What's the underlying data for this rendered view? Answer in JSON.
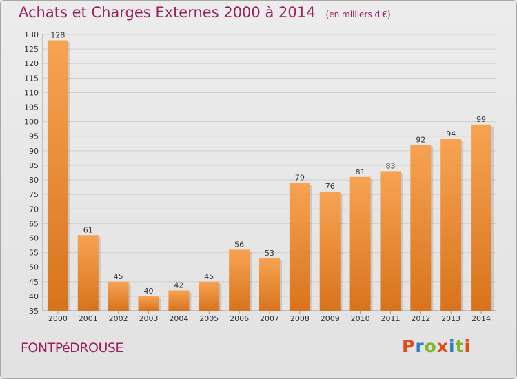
{
  "header": {
    "title": "Achats et Charges Externes 2000 à 2014",
    "subtitle": "(en milliers d'€)"
  },
  "footer": {
    "place": "FONTPéDROUSE",
    "logo": "Proxiti"
  },
  "colors": {
    "title": "#9c1f5e",
    "bar_light": "#f7a352",
    "bar_dark": "#d8731c",
    "logo_letters": [
      "#e04a1f",
      "#2f7fc0",
      "#7cb82f",
      "#e04a1f",
      "#2f7fc0",
      "#7cb82f",
      "#e04a1f"
    ]
  },
  "chart_data": {
    "type": "bar",
    "title": "Achats et Charges Externes 2000 à 2014",
    "subtitle": "(en milliers d'€)",
    "xlabel": "",
    "ylabel": "",
    "categories": [
      "2000",
      "2001",
      "2002",
      "2003",
      "2004",
      "2005",
      "2006",
      "2007",
      "2008",
      "2009",
      "2010",
      "2011",
      "2012",
      "2013",
      "2014"
    ],
    "values": [
      128,
      61,
      45,
      40,
      42,
      45,
      56,
      53,
      79,
      76,
      81,
      83,
      92,
      94,
      99
    ],
    "ylim": [
      35,
      130
    ],
    "yticks": [
      35,
      40,
      45,
      50,
      55,
      60,
      65,
      70,
      75,
      80,
      85,
      90,
      95,
      100,
      105,
      110,
      115,
      120,
      125,
      130
    ],
    "grid": true,
    "data_labels": true
  }
}
